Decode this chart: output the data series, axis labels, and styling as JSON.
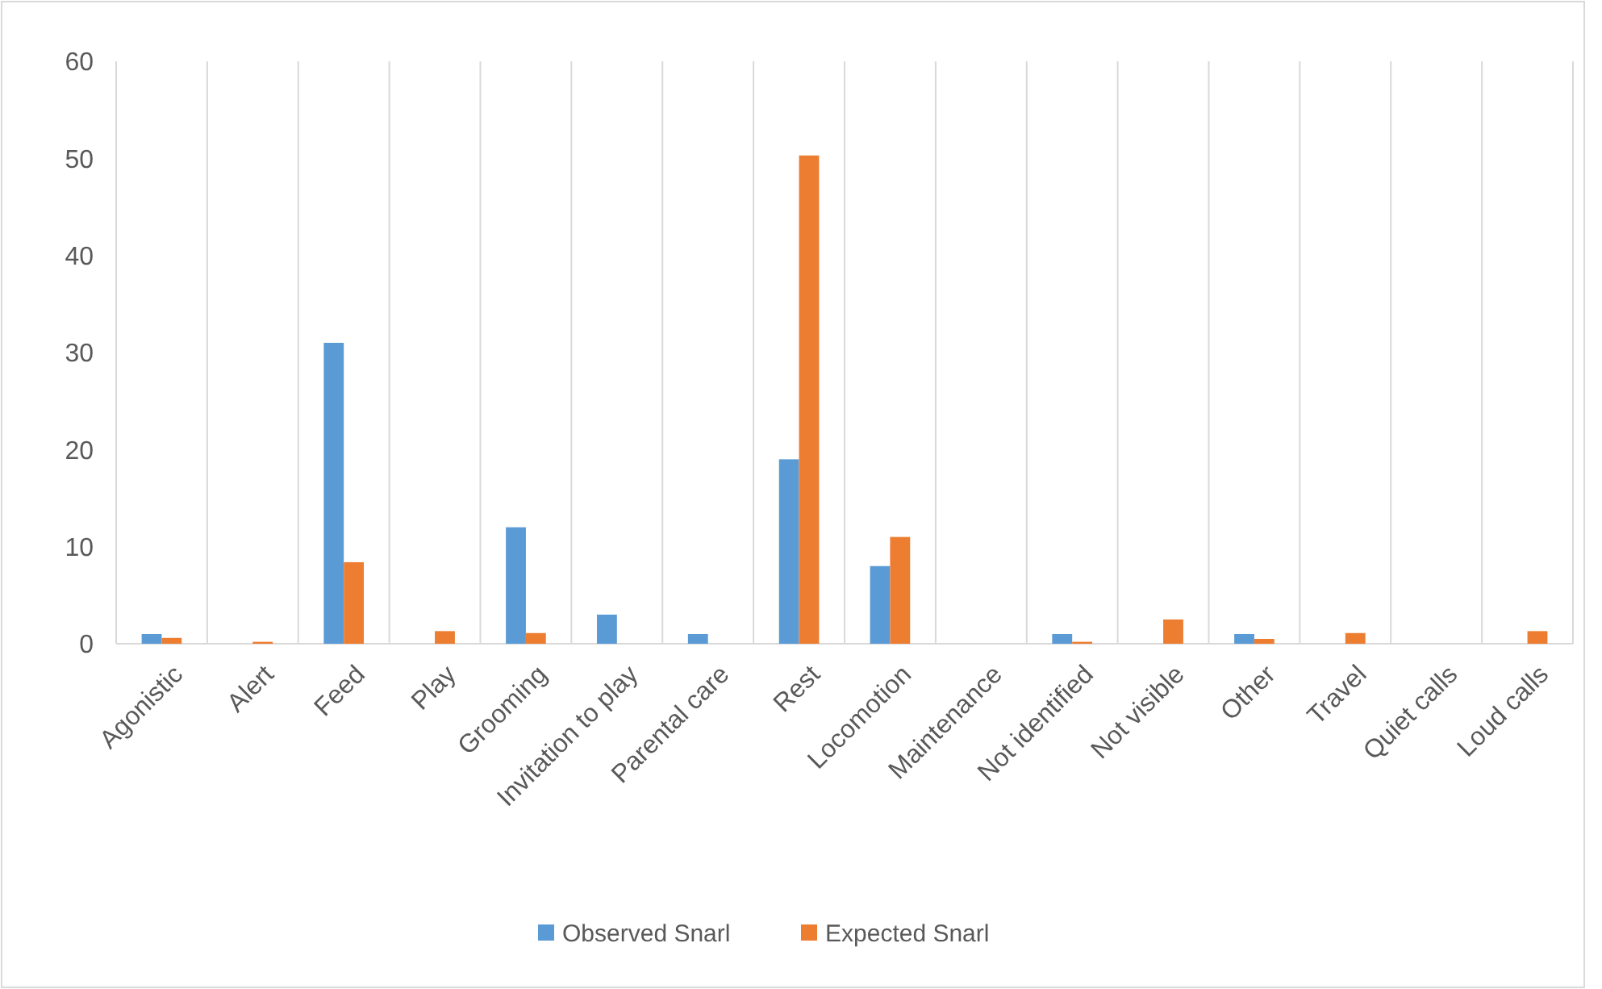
{
  "chart_data": {
    "type": "bar",
    "categories": [
      "Agonistic",
      "Alert",
      "Feed",
      "Play",
      "Grooming",
      "Invitation to play",
      "Parental care",
      "Rest",
      "Locomotion",
      "Maintenance",
      "Not identified",
      "Not visible",
      "Other",
      "Travel",
      "Quiet calls",
      "Loud calls"
    ],
    "series": [
      {
        "name": "Observed Snarl",
        "color": "#5b9bd5",
        "values": [
          1,
          0,
          31,
          0,
          12,
          3,
          1,
          19,
          8,
          0,
          1,
          0,
          1,
          0,
          0,
          0
        ]
      },
      {
        "name": "Expected Snarl",
        "color": "#ed7d31",
        "values": [
          0.6,
          0.2,
          8.4,
          1.3,
          1.1,
          0,
          0,
          50.3,
          11,
          0,
          0.2,
          2.5,
          0.5,
          1.1,
          0,
          1.3
        ]
      }
    ],
    "ylim": [
      0,
      60
    ],
    "yticks": [
      0,
      10,
      20,
      30,
      40,
      50,
      60
    ],
    "grid": "x",
    "legend": "bottom"
  }
}
